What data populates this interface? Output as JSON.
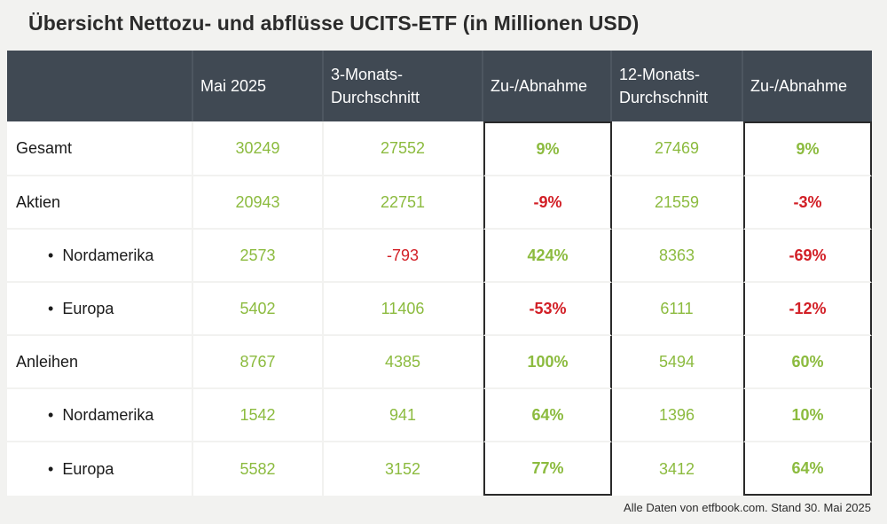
{
  "title": "Übersicht Nettozu- und abflüsse UCITS-ETF (in Millionen USD)",
  "columns": [
    "",
    "Mai 2025",
    "3-Monats-Durchschnitt",
    "Zu-/Abnahme",
    "12-Monats-Durchschnitt",
    "Zu-/Abnahme"
  ],
  "column_lines": {
    "c2": [
      "3-Monats-",
      "Durchschnitt"
    ],
    "c4": [
      "12-Monats-",
      "Durchschnitt"
    ]
  },
  "bullet": "•",
  "rows": [
    {
      "label": "Gesamt",
      "sub": false,
      "values": [
        "30249",
        "27552",
        "9%",
        "27469",
        "9%"
      ],
      "negative": [
        false,
        false,
        false,
        false,
        false
      ]
    },
    {
      "label": "Aktien",
      "sub": false,
      "values": [
        "20943",
        "22751",
        "-9%",
        "21559",
        "-3%"
      ],
      "negative": [
        false,
        false,
        true,
        false,
        true
      ]
    },
    {
      "label": "Nordamerika",
      "sub": true,
      "values": [
        "2573",
        "-793",
        "424%",
        "8363",
        "-69%"
      ],
      "negative": [
        false,
        true,
        false,
        false,
        true
      ]
    },
    {
      "label": "Europa",
      "sub": true,
      "values": [
        "5402",
        "11406",
        "-53%",
        "6111",
        "-12%"
      ],
      "negative": [
        false,
        false,
        true,
        false,
        true
      ]
    },
    {
      "label": "Anleihen",
      "sub": false,
      "values": [
        "8767",
        "4385",
        "100%",
        "5494",
        "60%"
      ],
      "negative": [
        false,
        false,
        false,
        false,
        false
      ]
    },
    {
      "label": "Nordamerika",
      "sub": true,
      "values": [
        "1542",
        "941",
        "64%",
        "1396",
        "10%"
      ],
      "negative": [
        false,
        false,
        false,
        false,
        false
      ]
    },
    {
      "label": "Europa",
      "sub": true,
      "values": [
        "5582",
        "3152",
        "77%",
        "3412",
        "64%"
      ],
      "negative": [
        false,
        false,
        false,
        false,
        false
      ]
    }
  ],
  "footer": "Alle Daten von etfbook.com. Stand 30. Mai 2025",
  "colors": {
    "header_bg": "#404953",
    "positive": "#8cbb3f",
    "negative": "#d21f26"
  }
}
